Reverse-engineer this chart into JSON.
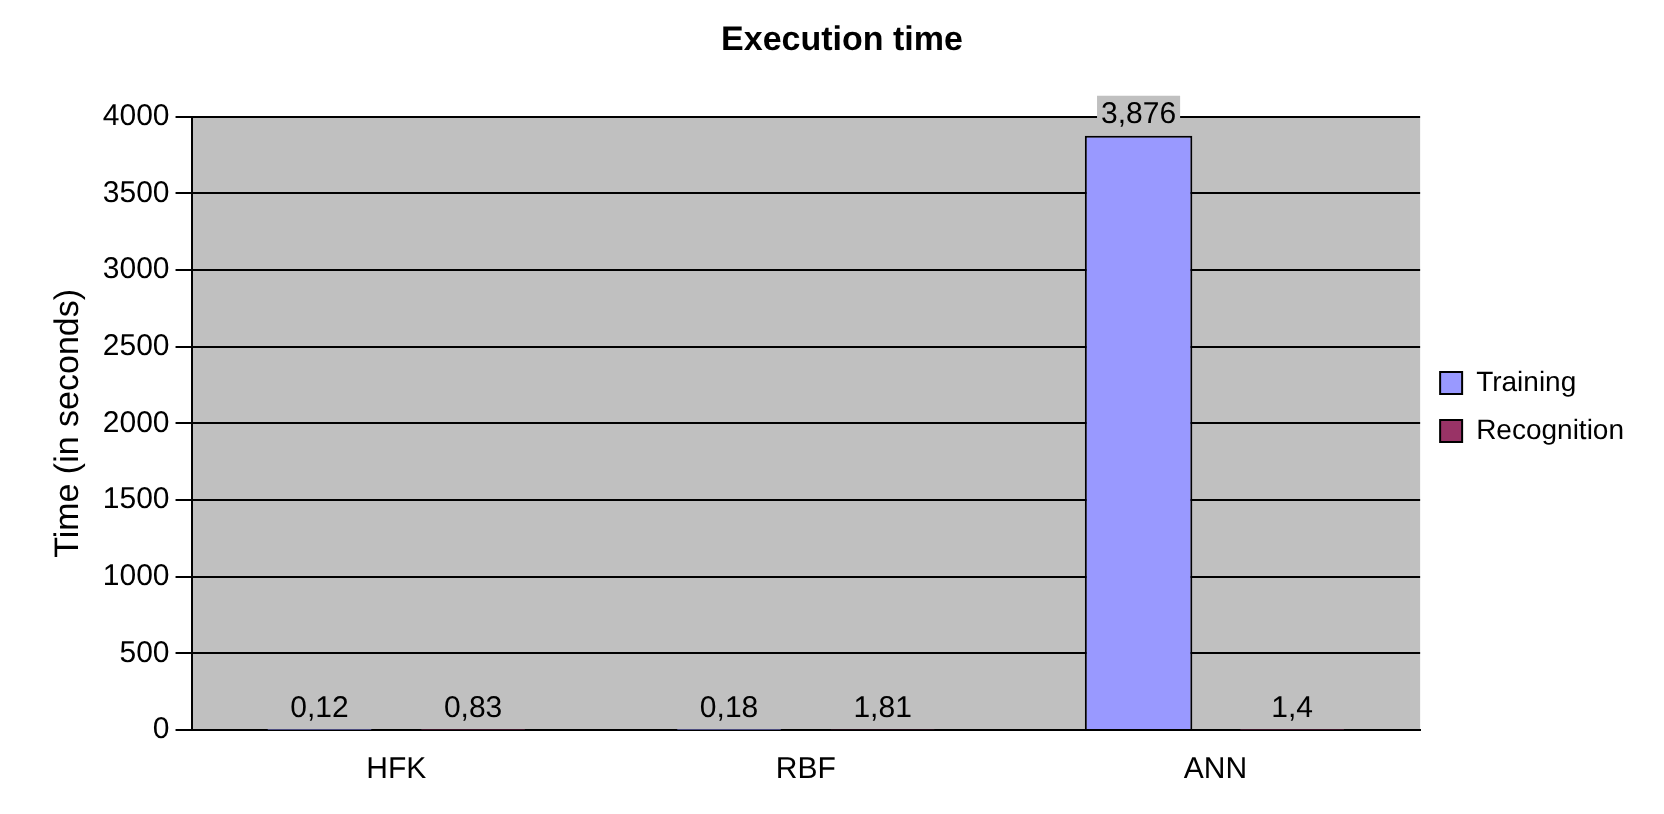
{
  "chart_data": {
    "type": "bar",
    "title": "Execution time",
    "ylabel": "Time (in seconds)",
    "categories": [
      "HFK",
      "RBF",
      "ANN"
    ],
    "series": [
      {
        "name": "Training",
        "color": "#9999ff",
        "values": [
          0.12,
          0.18,
          3876
        ],
        "value_labels": [
          "0,12",
          "0,18",
          "3,876"
        ]
      },
      {
        "name": "Recognition",
        "color": "#993366",
        "values": [
          0.83,
          1.81,
          1.4
        ],
        "value_labels": [
          "0,83",
          "1,81",
          "1,4"
        ]
      }
    ],
    "ylim": [
      0,
      4000
    ],
    "yticks": [
      0,
      500,
      1000,
      1500,
      2000,
      2500,
      3000,
      3500,
      4000
    ],
    "grid": "y",
    "legend": "right"
  }
}
